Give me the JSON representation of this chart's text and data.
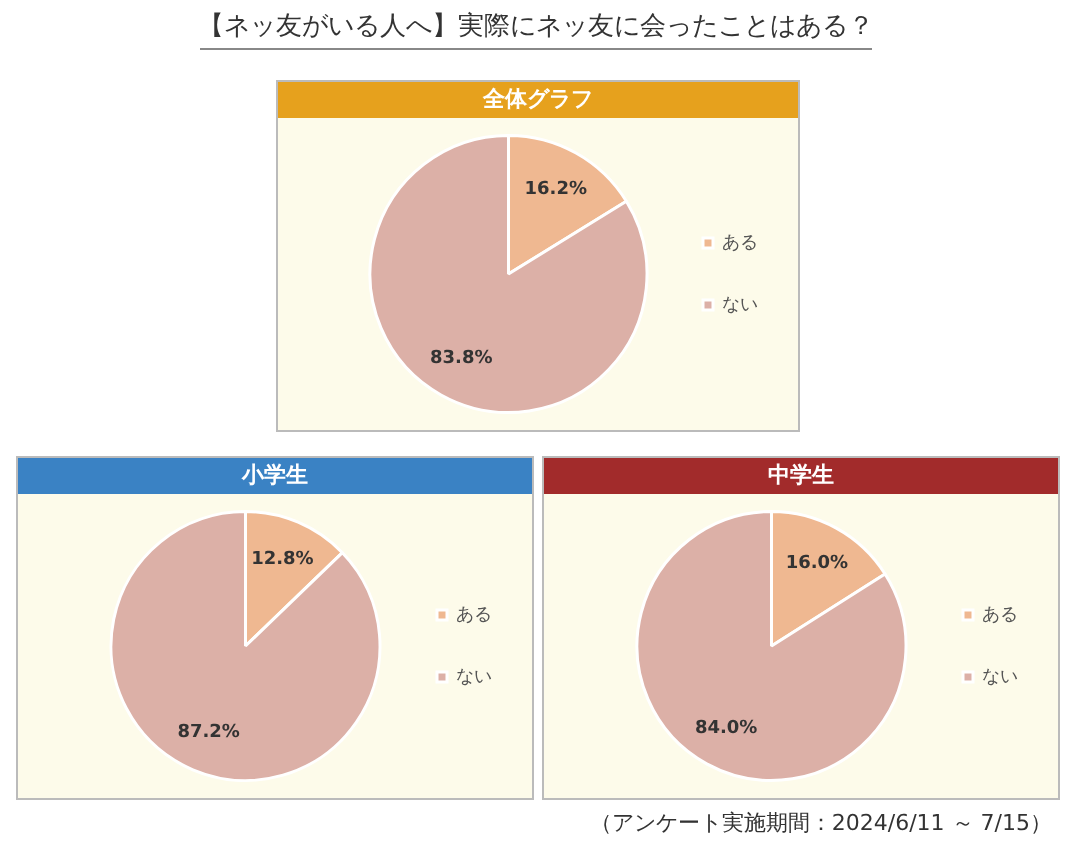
{
  "chart_data": [
    {
      "type": "pie",
      "title": "全体グラフ",
      "categories": [
        "ある",
        "ない"
      ],
      "values": [
        16.2,
        83.8
      ],
      "colors": [
        "#efb891",
        "#dcb0a7"
      ],
      "value_labels": [
        "16.2%",
        "83.8%"
      ],
      "legend": "right",
      "annotations": [
        "【ネッ友がいる人へ】実際にネッ友に会ったことはある？"
      ]
    },
    {
      "type": "pie",
      "title": "小学生",
      "categories": [
        "ある",
        "ない"
      ],
      "values": [
        12.8,
        87.2
      ],
      "colors": [
        "#efb891",
        "#dcb0a7"
      ],
      "value_labels": [
        "12.8%",
        "87.2%"
      ],
      "legend": "right"
    },
    {
      "type": "pie",
      "title": "中学生",
      "categories": [
        "ある",
        "ない"
      ],
      "values": [
        16.0,
        84.0
      ],
      "colors": [
        "#efb891",
        "#dcb0a7"
      ],
      "value_labels": [
        "16.0%",
        "84.0%"
      ],
      "legend": "right",
      "annotations": [
        "（アンケート実施期間：2024/6/11 ～ 7/15）"
      ]
    }
  ]
}
